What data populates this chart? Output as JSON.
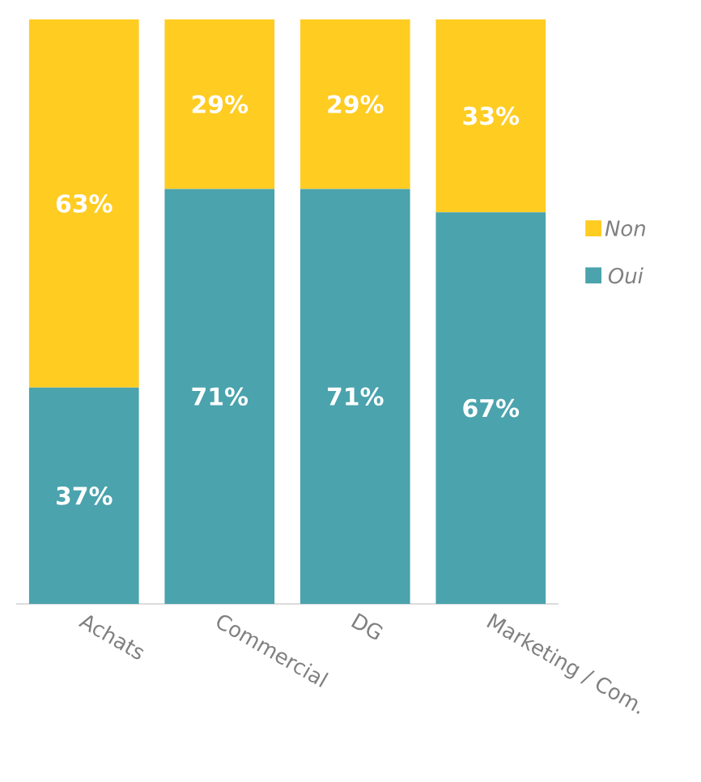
{
  "chart_data": {
    "type": "bar",
    "stacked": true,
    "categories": [
      "Achats",
      "Commercial",
      "DG",
      "Marketing / Com."
    ],
    "ylim": [
      0,
      100
    ],
    "legend": "right",
    "series": [
      {
        "name": "Oui",
        "color": "#4aa3ad",
        "values": [
          37,
          71,
          71,
          67
        ],
        "value_labels": [
          "37%",
          "71%",
          "71%",
          "67%"
        ]
      },
      {
        "name": "Non",
        "color": "#ffcc22",
        "values": [
          63,
          29,
          29,
          33
        ],
        "value_labels": [
          "63%",
          "29%",
          "29%",
          "33%"
        ]
      }
    ]
  }
}
